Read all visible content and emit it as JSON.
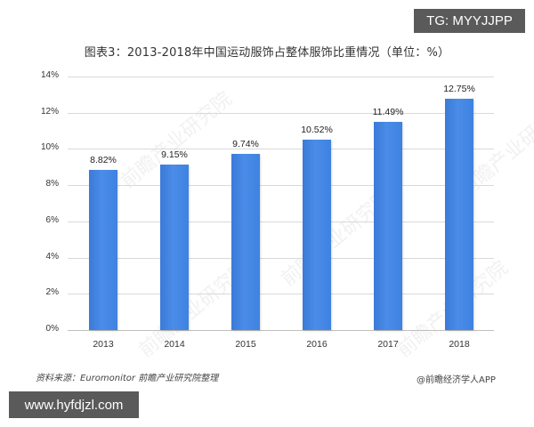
{
  "header": {
    "title": "图表3：2013-2018年中国运动服饰占整体服饰比重情况（单位：%）"
  },
  "badges": {
    "tg": "TG: MYYJJPP",
    "url": "www.hyfdjzl.com"
  },
  "footer": {
    "source": "资料来源：Euromonitor 前瞻产业研究院整理",
    "credit": "@前瞻经济学人APP"
  },
  "watermark": "前瞻产业研究院",
  "colors": {
    "bar": "#4185e0",
    "grid": "#d9d9d9",
    "badge_bg": "#5a5a5a"
  },
  "chart_data": {
    "type": "bar",
    "title": "图表3：2013-2018年中国运动服饰占整体服饰比重情况（单位：%）",
    "xlabel": "",
    "ylabel": "",
    "categories": [
      "2013",
      "2014",
      "2015",
      "2016",
      "2017",
      "2018"
    ],
    "values": [
      8.82,
      9.15,
      9.74,
      10.52,
      11.49,
      12.75
    ],
    "value_labels": [
      "8.82%",
      "9.15%",
      "9.74%",
      "10.52%",
      "11.49%",
      "12.75%"
    ],
    "ylim": [
      0,
      14
    ],
    "yticks": [
      "0%",
      "2%",
      "4%",
      "6%",
      "8%",
      "10%",
      "12%",
      "14%"
    ],
    "ytick_values": [
      0,
      2,
      4,
      6,
      8,
      10,
      12,
      14
    ],
    "grid": true,
    "legend": "none",
    "unit": "%"
  }
}
